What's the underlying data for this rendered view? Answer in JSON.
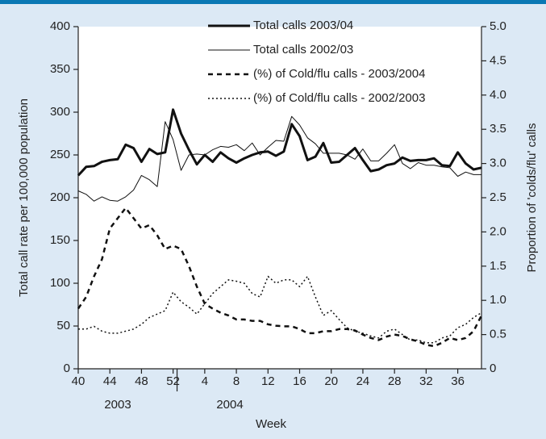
{
  "chart_data": {
    "type": "line",
    "y_label": "Total call rate per 100,000 population",
    "y2_label": "Proportion of 'colds/flu' calls",
    "x_label": "Week",
    "annotations": [
      "2003",
      "2004"
    ],
    "categories": [
      "40",
      null,
      null,
      null,
      "44",
      null,
      null,
      null,
      "48",
      null,
      null,
      null,
      "52",
      null,
      null,
      null,
      "4",
      null,
      null,
      null,
      "8",
      null,
      null,
      null,
      "12",
      null,
      null,
      null,
      "16",
      null,
      null,
      null,
      "20",
      null,
      null,
      null,
      "24",
      null,
      null,
      null,
      "28",
      null,
      null,
      null,
      "32",
      null,
      null,
      null,
      "36",
      null,
      null,
      null
    ],
    "ylim": [
      0,
      400
    ],
    "yticks": [
      0,
      50,
      100,
      150,
      200,
      250,
      300,
      350,
      400
    ],
    "y2lim": [
      0,
      5
    ],
    "y2ticks": [
      0,
      0.5,
      {
        "value": 1,
        "label": "1.0"
      },
      1.5,
      {
        "value": 2,
        "label": "2.0"
      },
      2.5,
      {
        "value": 3,
        "label": "3.0"
      },
      3.5,
      {
        "value": 4,
        "label": "4.0"
      },
      4.5,
      {
        "value": 5,
        "label": "5.0"
      }
    ],
    "series": [
      {
        "name": "Total calls 2003/04",
        "color": "#111111",
        "width": 3,
        "dash": "none",
        "values": [
          226,
          236,
          237,
          242,
          244,
          245,
          262,
          258,
          242,
          257,
          251,
          253,
          303,
          275,
          256,
          239,
          250,
          242,
          253,
          246,
          241,
          246,
          250,
          253,
          254,
          249,
          254,
          286,
          272,
          244,
          248,
          264,
          241,
          242,
          250,
          258,
          244,
          231,
          233,
          238,
          240,
          247,
          243,
          244,
          244,
          246,
          238,
          237,
          253,
          240,
          233,
          235
        ]
      },
      {
        "name": "Total calls 2002/03",
        "color": "#111111",
        "width": 1,
        "dash": "none",
        "values": [
          208,
          204,
          196,
          201,
          197,
          196,
          201,
          209,
          226,
          221,
          213,
          289,
          268,
          232,
          250,
          251,
          250,
          256,
          260,
          259,
          262,
          255,
          264,
          250,
          259,
          267,
          266,
          295,
          285,
          270,
          263,
          252,
          252,
          252,
          250,
          245,
          257,
          243,
          243,
          252,
          262,
          240,
          234,
          241,
          238,
          238,
          236,
          235,
          225,
          230,
          227,
          227
        ]
      },
      {
        "name": "(%) of Cold/flu calls - 2003/2004",
        "color": "#111111",
        "width": 2.5,
        "dash": "6 5",
        "axis": "y2",
        "values": [
          0.88,
          1.05,
          1.35,
          1.6,
          2.05,
          2.2,
          2.35,
          2.2,
          2.05,
          2.1,
          1.95,
          1.75,
          1.8,
          1.75,
          1.5,
          1.2,
          0.95,
          0.88,
          0.82,
          0.78,
          0.72,
          0.72,
          0.7,
          0.7,
          0.65,
          0.63,
          0.62,
          0.62,
          0.58,
          0.52,
          0.52,
          0.55,
          0.55,
          0.58,
          0.58,
          0.56,
          0.5,
          0.45,
          0.42,
          0.47,
          0.5,
          0.48,
          0.43,
          0.4,
          0.35,
          0.33,
          0.38,
          0.45,
          0.42,
          0.45,
          0.55,
          0.78
        ]
      },
      {
        "name": "(%) of Cold/flu calls - 2002/2003",
        "color": "#111111",
        "width": 1.5,
        "dash": "2 3",
        "axis": "y2",
        "values": [
          0.58,
          0.58,
          0.62,
          0.55,
          0.52,
          0.52,
          0.55,
          0.58,
          0.65,
          0.75,
          0.8,
          0.85,
          1.12,
          0.98,
          0.9,
          0.8,
          0.95,
          1.1,
          1.2,
          1.3,
          1.28,
          1.25,
          1.1,
          1.05,
          1.35,
          1.25,
          1.3,
          1.3,
          1.2,
          1.35,
          1.05,
          0.78,
          0.85,
          0.72,
          0.6,
          0.55,
          0.52,
          0.48,
          0.45,
          0.55,
          0.58,
          0.5,
          0.42,
          0.42,
          0.38,
          0.38,
          0.45,
          0.48,
          0.6,
          0.65,
          0.75,
          0.82
        ]
      }
    ]
  }
}
